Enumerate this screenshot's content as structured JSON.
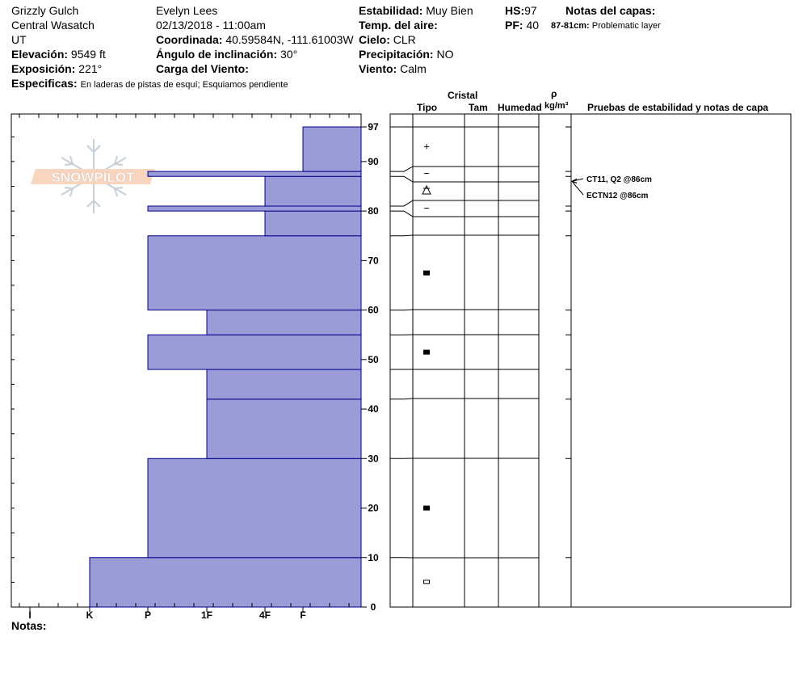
{
  "header": {
    "location": "Grizzly Gulch",
    "range": "Central Wasatch",
    "state": "UT",
    "elevation_label": "Elevación:",
    "elevation_value": "9549 ft",
    "aspect_label": "Exposición:",
    "aspect_value": "221°",
    "specifics_label": "Especificas:",
    "specifics_value": "En laderas de pistas de esquí; Esquiamos pendiente",
    "observer": "Evelyn Lees",
    "datetime": "02/13/2018 - 11:00am",
    "coord_label": "Coordinada:",
    "coord_value": "40.59584N, -111.61003W",
    "slope_label": "Ángulo de inclinación:",
    "slope_value": "30°",
    "wind_load_label": "Carga del Viento:",
    "stability_label": "Estabilidad:",
    "stability_value": "Muy Bien",
    "air_temp_label": "Temp. del aire:",
    "sky_label": "Cielo:",
    "sky_value": "CLR",
    "precip_label": "Precipitación:",
    "precip_value": "NO",
    "wind_label": "Viento:",
    "wind_value": "Calm",
    "hs_label": "HS:",
    "hs_value": "97",
    "pf_label": "PF:",
    "pf_value": "40",
    "layer_notes_label": "Notas del capas:",
    "layer_note_range": "87-81cm:",
    "layer_note_text": "Problematic layer"
  },
  "columns": {
    "cristal": "Cristal",
    "tipo": "Tipo",
    "tam": "Tam",
    "humedad": "Humedad",
    "rho": "ρ",
    "density_unit": "kg/m³",
    "tests": "Pruebas de estabilidad y notas de capa"
  },
  "notes_label": "Notas:",
  "logo_text": "SNOWPILOT",
  "colors": {
    "hardness_fill": "#9b9bd8",
    "hardness_stroke": "#00008b"
  },
  "chart_data": {
    "type": "bar",
    "ylim": [
      0,
      97
    ],
    "hardness_scale": [
      "I",
      "K",
      "P",
      "1F",
      "4F",
      "F"
    ],
    "depth_ticks": [
      0,
      10,
      20,
      30,
      40,
      50,
      60,
      70,
      80,
      90,
      97
    ],
    "layers": [
      {
        "bottom": 0,
        "top": 10,
        "hardness": "K"
      },
      {
        "bottom": 10,
        "top": 30,
        "hardness": "P"
      },
      {
        "bottom": 30,
        "top": 42,
        "hardness": "1F"
      },
      {
        "bottom": 42,
        "top": 48,
        "hardness": "1F"
      },
      {
        "bottom": 48,
        "top": 55,
        "hardness": "P"
      },
      {
        "bottom": 55,
        "top": 60,
        "hardness": "1F"
      },
      {
        "bottom": 60,
        "top": 75,
        "hardness": "P"
      },
      {
        "bottom": 75,
        "top": 80,
        "hardness": "4F"
      },
      {
        "bottom": 80,
        "top": 81,
        "hardness": "P"
      },
      {
        "bottom": 81,
        "top": 87,
        "hardness": "4F"
      },
      {
        "bottom": 87,
        "top": 88,
        "hardness": "P"
      },
      {
        "bottom": 88,
        "top": 97,
        "hardness": "F"
      }
    ],
    "crystal_symbols": [
      {
        "depth": 93,
        "symbol": "+"
      },
      {
        "depth": 87.5,
        "symbol": "−"
      },
      {
        "depth": 84.5,
        "symbol": "⩚"
      },
      {
        "depth": 80.5,
        "symbol": "−"
      },
      {
        "depth": 67.5,
        "symbol": "■"
      },
      {
        "depth": 51.5,
        "symbol": "■"
      },
      {
        "depth": 20,
        "symbol": "■"
      },
      {
        "depth": 5,
        "symbol": "▭"
      }
    ],
    "stability_tests": [
      {
        "depth": 86,
        "label": "CT11, Q2 @86cm"
      },
      {
        "depth": 86,
        "label": "ECTN12 @86cm"
      }
    ]
  }
}
